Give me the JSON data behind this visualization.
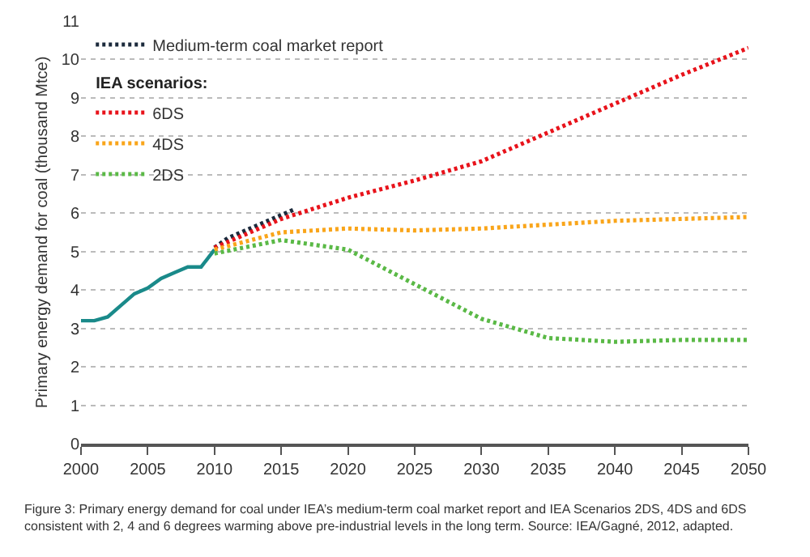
{
  "chart_data": {
    "type": "line",
    "ylabel": "Primary energy demand for coal (thousand Mtce)",
    "xlim": [
      2000,
      2050
    ],
    "xticks": [
      2000,
      2005,
      2010,
      2015,
      2020,
      2025,
      2030,
      2035,
      2040,
      2045,
      2050
    ],
    "ylim": [
      0,
      11
    ],
    "yticks": [
      0,
      1,
      2,
      3,
      4,
      5,
      6,
      7,
      8,
      9,
      10,
      11
    ],
    "grid": "y",
    "legend": "top left",
    "legend_title": "IEA scenarios:",
    "marker": "none",
    "series": [
      {
        "color": "#1a8a8a",
        "line_style": "solid",
        "x": [
          2000,
          2001,
          2002,
          2003,
          2004,
          2005,
          2006,
          2007,
          2008,
          2009,
          2010
        ],
        "values": [
          3.2,
          3.2,
          3.3,
          3.6,
          3.9,
          4.05,
          4.3,
          4.45,
          4.6,
          4.6,
          5.05
        ]
      },
      {
        "name": "Medium-term coal market report",
        "color": "#1c2a3c",
        "line_style": "dotted",
        "x": [
          2010,
          2011,
          2012,
          2013,
          2014,
          2015,
          2016
        ],
        "values": [
          5.1,
          5.35,
          5.5,
          5.65,
          5.8,
          5.95,
          6.1
        ]
      },
      {
        "name": "6DS",
        "color": "#e8131b",
        "line_style": "dotted",
        "x": [
          2010,
          2015,
          2020,
          2025,
          2030,
          2035,
          2040,
          2045,
          2050
        ],
        "values": [
          5.1,
          5.85,
          6.4,
          6.85,
          7.35,
          8.1,
          8.85,
          9.6,
          10.3
        ]
      },
      {
        "name": "4DS",
        "color": "#f9a51a",
        "line_style": "dotted",
        "x": [
          2010,
          2015,
          2020,
          2025,
          2030,
          2035,
          2040,
          2045,
          2050
        ],
        "values": [
          5.05,
          5.5,
          5.6,
          5.55,
          5.6,
          5.7,
          5.8,
          5.85,
          5.9
        ]
      },
      {
        "name": "2DS",
        "color": "#5ab946",
        "line_style": "dotted",
        "x": [
          2010,
          2015,
          2020,
          2025,
          2030,
          2035,
          2040,
          2045,
          2050
        ],
        "values": [
          4.95,
          5.3,
          5.05,
          4.15,
          3.25,
          2.75,
          2.65,
          2.7,
          2.7
        ]
      }
    ],
    "annotations": [
      "Figure 3: Primary energy demand for coal under IEA’s medium-term coal market report and IEA Scenarios 2DS, 4DS and 6DS consistent with 2, 4 and 6 degrees warming above pre-industrial levels in the long term. Source: IEA/Gagné, 2012, adapted."
    ]
  }
}
